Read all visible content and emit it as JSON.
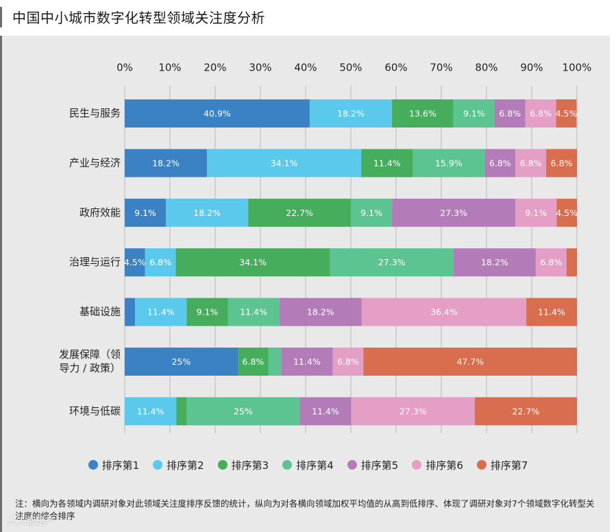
{
  "page": {
    "title": "中国中小城市数字化转型领域关注度分析",
    "note": "注：横向为各领域内调研对象对此领域关注度排序反馈的统计，纵向为对各横向领域加权平均值的从高到低排序、体现了调研对象对7个领域数字化转型关注度的综合排序",
    "watermark": "人人都是产"
  },
  "colors": [
    "#3a82c4",
    "#5bc9eb",
    "#45ad5c",
    "#5cc490",
    "#b37cb9",
    "#e59ec6",
    "#d96e4f"
  ],
  "chart_data": {
    "type": "bar",
    "orientation": "horizontal-stacked-100",
    "title": "中国中小城市数字化转型领域关注度分析",
    "x_ticks": [
      "0%",
      "10%",
      "20%",
      "30%",
      "40%",
      "50%",
      "60%",
      "70%",
      "80%",
      "90%",
      "100%"
    ],
    "xlim": [
      0,
      100
    ],
    "categories": [
      "民生与服务",
      "产业与经济",
      "政府效能",
      "治理与运行",
      "基础设施",
      "发展保障（领导力 / 政策）",
      "环境与低碳"
    ],
    "category_lines": [
      [
        "民生与服务"
      ],
      [
        "产业与经济"
      ],
      [
        "政府效能"
      ],
      [
        "治理与运行"
      ],
      [
        "基础设施"
      ],
      [
        "发展保障（领",
        "导力 / 政策）"
      ],
      [
        "环境与低碳"
      ]
    ],
    "series": [
      {
        "name": "排序第1",
        "values": [
          40.9,
          18.2,
          9.1,
          4.5,
          2.3,
          25,
          0
        ],
        "labels": [
          "40.9%",
          "18.2%",
          "9.1%",
          "4.5%",
          "",
          "25%",
          ""
        ]
      },
      {
        "name": "排序第2",
        "values": [
          18.2,
          34.1,
          18.2,
          6.8,
          11.4,
          0,
          11.4
        ],
        "labels": [
          "18.2%",
          "34.1%",
          "18.2%",
          "6.8%",
          "11.4%",
          "",
          "11.4%"
        ]
      },
      {
        "name": "排序第3",
        "values": [
          13.6,
          11.4,
          22.7,
          34.1,
          9.1,
          6.8,
          2.3
        ],
        "labels": [
          "13.6%",
          "11.4%",
          "22.7%",
          "34.1%",
          "9.1%",
          "6.8%",
          ""
        ]
      },
      {
        "name": "排序第4",
        "values": [
          9.1,
          15.9,
          9.1,
          27.3,
          11.4,
          2.8,
          25
        ],
        "labels": [
          "9.1%",
          "15.9%",
          "9.1%",
          "27.3%",
          "11.4%",
          "",
          "25%"
        ]
      },
      {
        "name": "排序第5",
        "values": [
          6.8,
          6.8,
          27.3,
          18.2,
          18.2,
          11.4,
          11.4
        ],
        "labels": [
          "6.8%",
          "6.8%",
          "27.3%",
          "18.2%",
          "18.2%",
          "11.4%",
          "11.4%"
        ]
      },
      {
        "name": "排序第6",
        "values": [
          6.8,
          6.8,
          9.1,
          6.8,
          36.4,
          6.8,
          27.3
        ],
        "labels": [
          "6.8%",
          "6.8%",
          "9.1%",
          "6.8%",
          "36.4%",
          "6.8%",
          "27.3%"
        ]
      },
      {
        "name": "排序第7",
        "values": [
          4.5,
          6.8,
          4.5,
          2.3,
          11.4,
          47.7,
          22.7
        ],
        "labels": [
          "4.5%",
          "6.8%",
          "4.5%",
          "",
          "11.4%",
          "47.7%",
          "22.7%"
        ]
      }
    ],
    "legend": [
      "排序第1",
      "排序第2",
      "排序第3",
      "排序第4",
      "排序第5",
      "排序第6",
      "排序第7"
    ],
    "legend_position": "bottom"
  }
}
